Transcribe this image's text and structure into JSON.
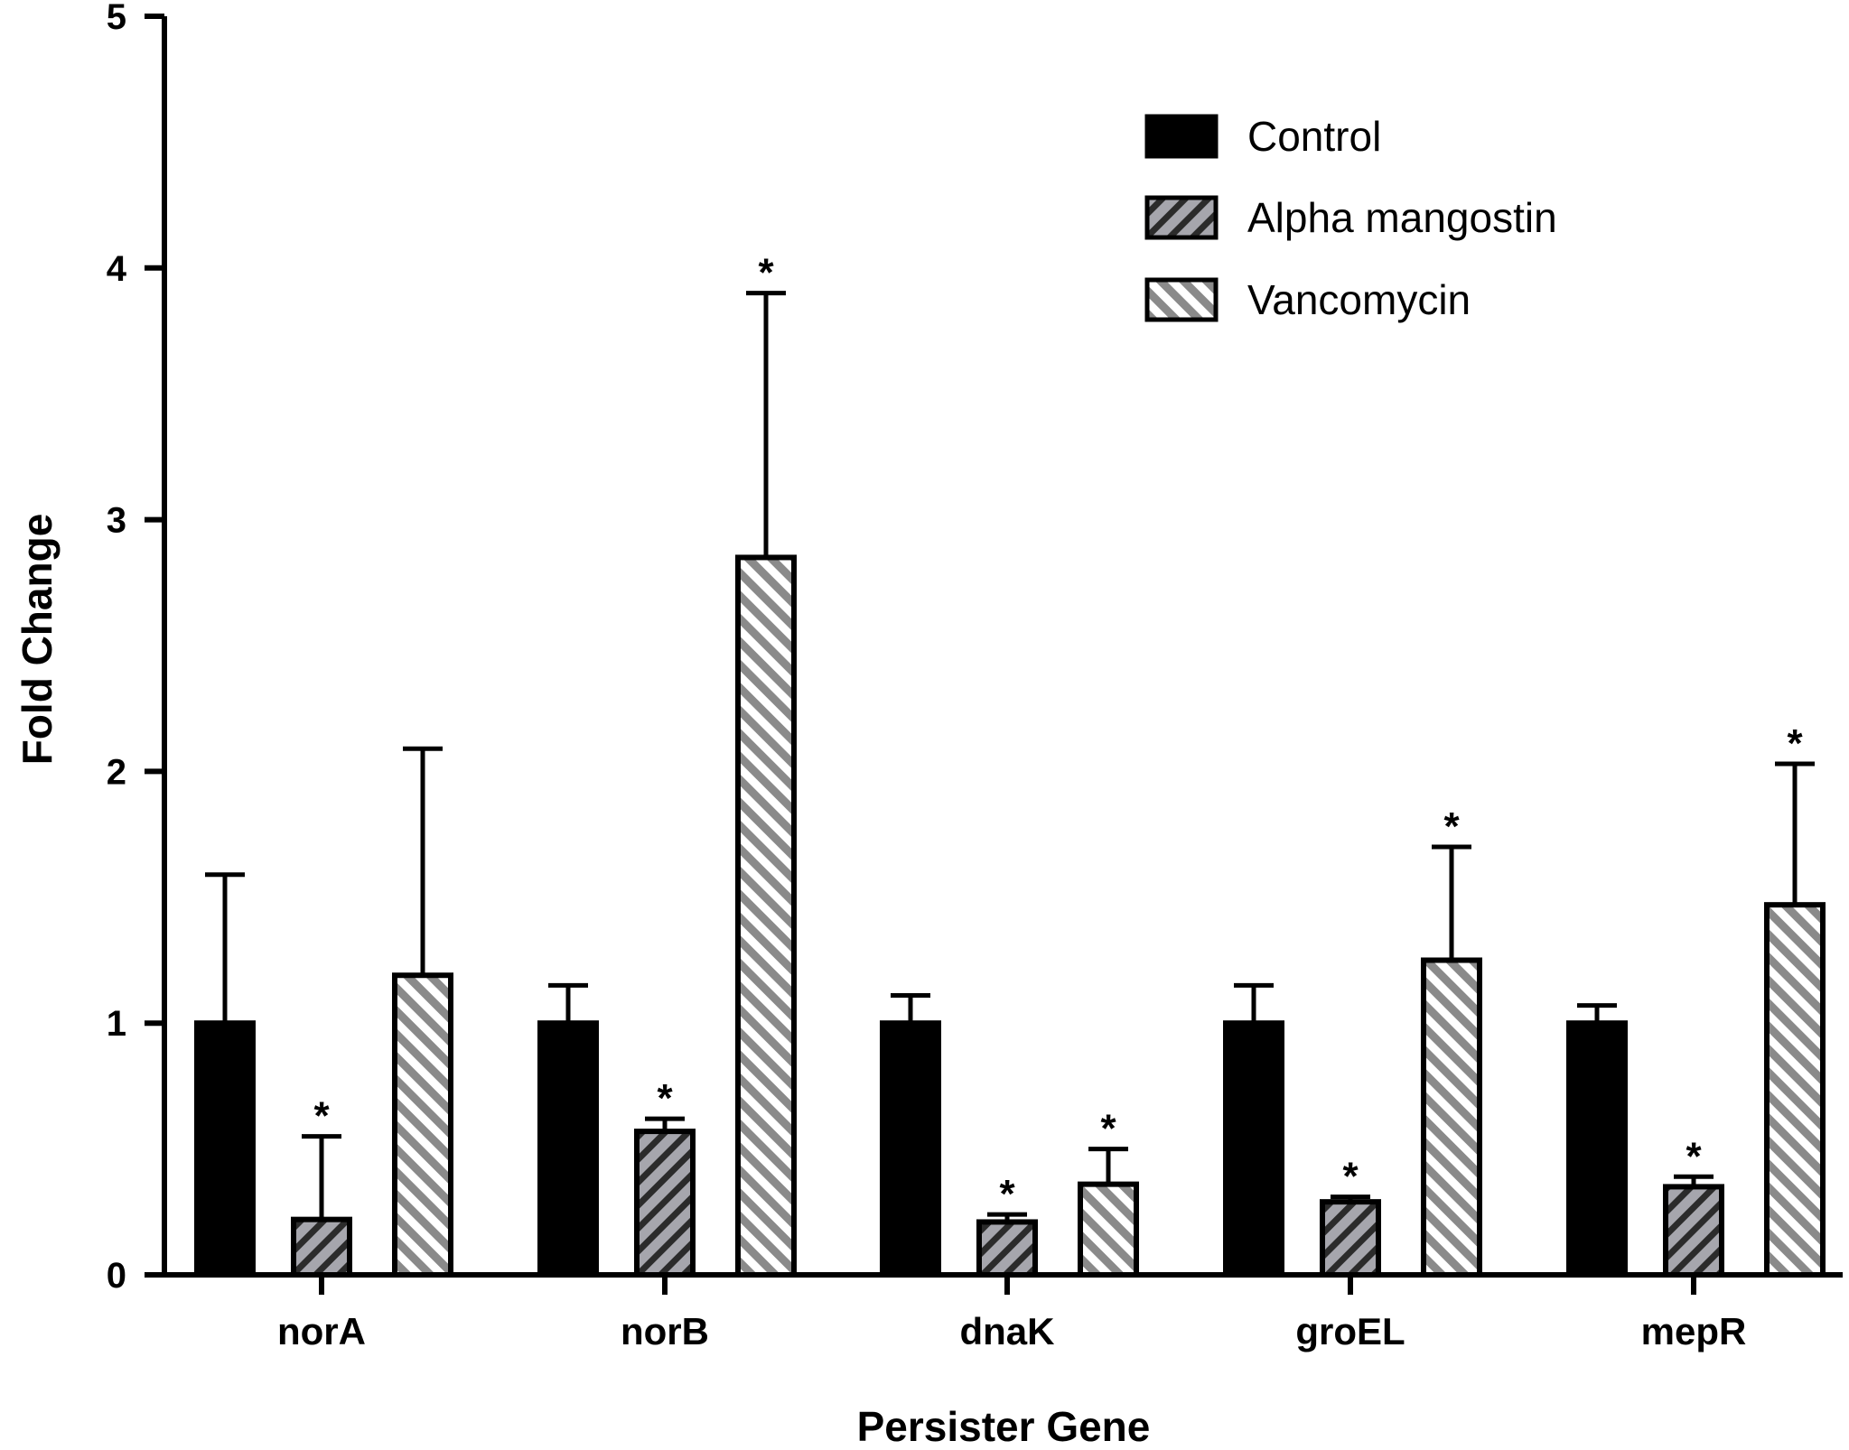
{
  "chart_data": {
    "type": "bar",
    "xlabel": "Persister Gene",
    "ylabel": "Fold Change",
    "ylim": [
      0,
      5
    ],
    "yticks": [
      0,
      1,
      2,
      3,
      4,
      5
    ],
    "categories": [
      "norA",
      "norB",
      "dnaK",
      "groEL",
      "mepR"
    ],
    "series": [
      {
        "name": "Control",
        "fill": "#000000",
        "pattern": "solid",
        "values": [
          1.0,
          1.0,
          1.0,
          1.0,
          1.0
        ],
        "error": [
          0.59,
          0.15,
          0.11,
          0.15,
          0.07
        ],
        "significant": [
          false,
          false,
          false,
          false,
          false
        ]
      },
      {
        "name": "Alpha mangostin",
        "fill": "#a6a6ad",
        "pattern": "hatch-down",
        "values": [
          0.22,
          0.57,
          0.21,
          0.29,
          0.35
        ],
        "error": [
          0.33,
          0.05,
          0.03,
          0.02,
          0.04
        ],
        "significant": [
          true,
          true,
          true,
          true,
          true
        ]
      },
      {
        "name": "Vancomycin",
        "fill": "#8f8f8f",
        "pattern": "hatch-up",
        "values": [
          1.19,
          2.85,
          0.36,
          1.25,
          1.47
        ],
        "error": [
          0.9,
          1.05,
          0.14,
          0.45,
          0.56
        ],
        "significant": [
          false,
          true,
          true,
          true,
          true
        ]
      }
    ],
    "significance_marker": "*",
    "legend_position": "top-right",
    "grid": false
  }
}
